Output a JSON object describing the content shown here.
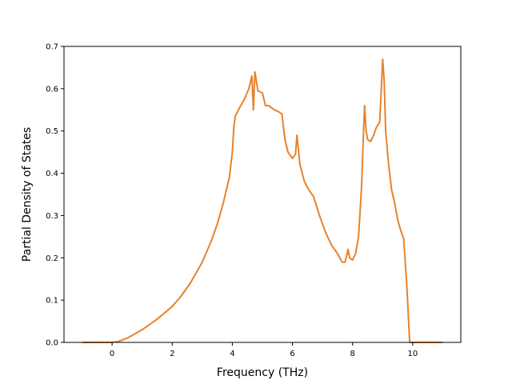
{
  "chart_data": {
    "type": "line",
    "title": "",
    "xlabel": "Frequency (THz)",
    "ylabel": "Partial Density of States",
    "xlim": [
      -1.6,
      11.6
    ],
    "ylim": [
      0.0,
      0.7
    ],
    "xticks": [
      0,
      2,
      4,
      6,
      8,
      10
    ],
    "yticks": [
      0.0,
      0.1,
      0.2,
      0.3,
      0.4,
      0.5,
      0.6,
      0.7
    ],
    "xtick_labels": [
      "0",
      "2",
      "4",
      "6",
      "8",
      "10"
    ],
    "ytick_labels": [
      "0.0",
      "0.1",
      "0.2",
      "0.3",
      "0.4",
      "0.5",
      "0.6",
      "0.7"
    ],
    "grid": false,
    "legend": "none",
    "series": [
      {
        "color": "#e8822a",
        "x": [
          -1.0,
          -0.5,
          0.0,
          0.2,
          0.5,
          0.8,
          1.0,
          1.5,
          2.0,
          2.3,
          2.6,
          3.0,
          3.3,
          3.5,
          3.7,
          3.9,
          4.0,
          4.05,
          4.1,
          4.2,
          4.4,
          4.55,
          4.65,
          4.7,
          4.75,
          4.85,
          5.0,
          5.1,
          5.2,
          5.4,
          5.55,
          5.65,
          5.75,
          5.85,
          6.0,
          6.1,
          6.15,
          6.25,
          6.4,
          6.55,
          6.7,
          6.9,
          7.1,
          7.3,
          7.5,
          7.65,
          7.75,
          7.8,
          7.85,
          7.9,
          8.0,
          8.1,
          8.2,
          8.3,
          8.35,
          8.4,
          8.45,
          8.5,
          8.6,
          8.7,
          8.8,
          8.9,
          8.95,
          9.0,
          9.05,
          9.1,
          9.2,
          9.3,
          9.4,
          9.5,
          9.6,
          9.7,
          9.8,
          9.9,
          10.0,
          10.3,
          11.0
        ],
        "y": [
          0.0,
          0.0,
          0.0,
          0.002,
          0.01,
          0.022,
          0.03,
          0.055,
          0.085,
          0.11,
          0.14,
          0.19,
          0.24,
          0.28,
          0.33,
          0.39,
          0.45,
          0.51,
          0.535,
          0.55,
          0.575,
          0.6,
          0.63,
          0.55,
          0.64,
          0.595,
          0.59,
          0.56,
          0.56,
          0.55,
          0.545,
          0.54,
          0.48,
          0.45,
          0.435,
          0.445,
          0.49,
          0.42,
          0.38,
          0.36,
          0.345,
          0.3,
          0.26,
          0.23,
          0.21,
          0.19,
          0.19,
          0.205,
          0.22,
          0.2,
          0.195,
          0.21,
          0.25,
          0.37,
          0.47,
          0.56,
          0.5,
          0.48,
          0.475,
          0.49,
          0.51,
          0.52,
          0.59,
          0.67,
          0.62,
          0.5,
          0.42,
          0.36,
          0.33,
          0.29,
          0.265,
          0.245,
          0.14,
          0.0,
          0.0,
          0.0,
          0.0
        ]
      }
    ]
  }
}
